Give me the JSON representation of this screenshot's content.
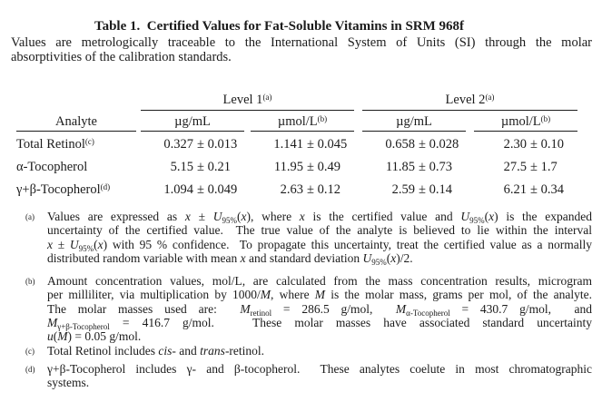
{
  "title": "Table 1.  Certified Values for Fat-Soluble Vitamins in SRM 968f",
  "intro": {
    "lines": [
      "Values are metrologically traceable to the International System of Units (SI) through the molar",
      "absorptivities of the calibration standards."
    ]
  },
  "table": {
    "level1": {
      "label": "Level 1",
      "sup": "(a)"
    },
    "level2": {
      "label": "Level 2",
      "sup": "(a)"
    },
    "analyte_header": "Analyte",
    "units": {
      "ugml": "µg/mL",
      "umol": "µmol/L",
      "umol_sup": "(b)"
    },
    "rows": [
      {
        "analyte": "Total Retinol",
        "sup": "(c)",
        "cells": [
          {
            "v": "0.327",
            "u": "± 0.013"
          },
          {
            "v": "1.141",
            "u": "± 0.045"
          },
          {
            "v": "0.658",
            "u": "± 0.028"
          },
          {
            "v": "2.30",
            "u": "± 0.10"
          }
        ]
      },
      {
        "analyte": "α-Tocopherol",
        "sup": "",
        "cells": [
          {
            "v": "5.15",
            "u": "± 0.21"
          },
          {
            "v": "11.95",
            "u": "± 0.49"
          },
          {
            "v": "11.85",
            "u": "± 0.73"
          },
          {
            "v": "27.5",
            "u": "± 1.7"
          }
        ]
      },
      {
        "analyte": "γ+β-Tocopherol",
        "sup": "(d)",
        "cells": [
          {
            "v": "1.094",
            "u": "± 0.049"
          },
          {
            "v": "2.63",
            "u": "± 0.12"
          },
          {
            "v": "2.59",
            "u": "± 0.14"
          },
          {
            "v": "6.21",
            "u": "± 0.34"
          }
        ]
      }
    ]
  },
  "footnotes": [
    {
      "marker": "(a)",
      "lines": [
        [
          [
            "",
            "Values are expressed as "
          ],
          [
            "i",
            "x"
          ],
          [
            "",
            " ± "
          ],
          [
            "i",
            "U"
          ],
          [
            "sub",
            "95%"
          ],
          [
            "",
            "("
          ],
          [
            "i",
            "x"
          ],
          [
            "",
            "), where "
          ],
          [
            "i",
            "x"
          ],
          [
            "",
            " is the certified value and "
          ],
          [
            "i",
            "U"
          ],
          [
            "sub",
            "95%"
          ],
          [
            "",
            "("
          ],
          [
            "i",
            "x"
          ],
          [
            "",
            ") is the expanded"
          ]
        ],
        [
          [
            "",
            "uncertainty of the certified value.  The true value of the analyte is believed to lie within the interval"
          ]
        ],
        [
          [
            "i",
            "x"
          ],
          [
            "",
            " ± "
          ],
          [
            "i",
            "U"
          ],
          [
            "sub",
            "95%"
          ],
          [
            "",
            "("
          ],
          [
            "i",
            "x"
          ],
          [
            "",
            ") with 95 % confidence.  To propagate this uncertainty, treat the certified value as a normally"
          ]
        ],
        [
          [
            "",
            "distributed random variable with mean "
          ],
          [
            "i",
            "x"
          ],
          [
            "",
            " and standard deviation "
          ],
          [
            "i",
            "U"
          ],
          [
            "sub",
            "95%"
          ],
          [
            "",
            "("
          ],
          [
            "i",
            "x"
          ],
          [
            "",
            ")/2."
          ]
        ]
      ]
    },
    {
      "marker": "(b)",
      "lines": [
        [
          [
            "",
            "Amount concentration values, mol/L, are calculated from the mass concentration results, microgram"
          ]
        ],
        [
          [
            "",
            "per milliliter, via multiplication by 1000/"
          ],
          [
            "i",
            "M"
          ],
          [
            "",
            ", where "
          ],
          [
            "i",
            "M"
          ],
          [
            "",
            " is the molar mass, grams per mol, of the analyte."
          ]
        ],
        [
          [
            "",
            "The molar masses used are:  "
          ],
          [
            "i",
            "M"
          ],
          [
            "sub",
            "retinol"
          ],
          [
            "",
            " = 286.5 g/mol,  "
          ],
          [
            "i",
            "M"
          ],
          [
            "sub",
            "α-Tocopherol"
          ],
          [
            "",
            " = 430.7 g/mol,  and"
          ]
        ],
        [
          [
            "i",
            "M"
          ],
          [
            "sub",
            "γ+β-Tocopherol"
          ],
          [
            "",
            " = 416.7 g/mol.   These molar masses have associated standard uncertainty"
          ]
        ],
        [
          [
            "i",
            "u"
          ],
          [
            "",
            "("
          ],
          [
            "i",
            "M"
          ],
          [
            "",
            ") = 0.05 g/mol."
          ]
        ]
      ]
    },
    {
      "marker": "(c)",
      "lines": [
        [
          [
            "",
            "Total Retinol includes "
          ],
          [
            "i",
            "cis"
          ],
          [
            "",
            "- and "
          ],
          [
            "i",
            "trans"
          ],
          [
            "",
            "-retinol."
          ]
        ]
      ]
    },
    {
      "marker": "(d)",
      "lines": [
        [
          [
            "",
            "γ+β-Tocopherol includes γ- and β-tocopherol.  These analytes coelute in most chromatographic"
          ]
        ],
        [
          [
            "",
            "systems."
          ]
        ]
      ]
    }
  ]
}
